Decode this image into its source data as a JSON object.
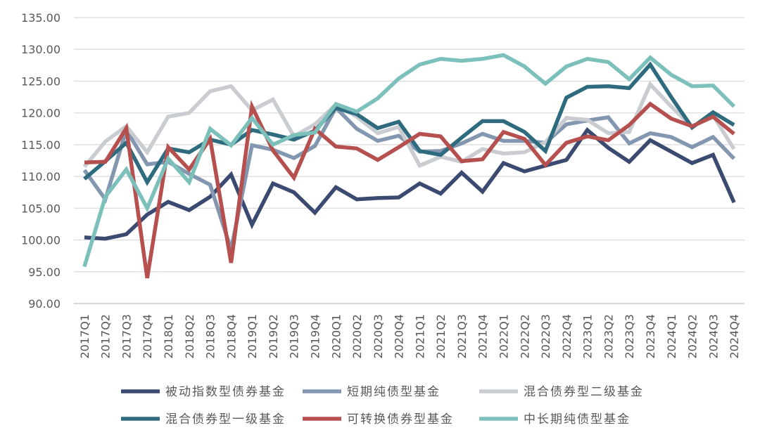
{
  "chart_data": {
    "type": "line",
    "title": "",
    "xlabel": "",
    "ylabel": "",
    "ylim": [
      90,
      135
    ],
    "ytick_step": 5,
    "y_tick_labels": [
      "90.00",
      "95.00",
      "100.00",
      "105.00",
      "110.00",
      "115.00",
      "120.00",
      "125.00",
      "130.00",
      "135.00"
    ],
    "grid": "horizontal",
    "legend_position": "bottom",
    "categories": [
      "2017Q1",
      "2017Q2",
      "2017Q3",
      "2017Q4",
      "2018Q1",
      "2018Q2",
      "2018Q3",
      "2018Q4",
      "2019Q1",
      "2019Q2",
      "2019Q3",
      "2019Q4",
      "2020Q1",
      "2020Q2",
      "2020Q3",
      "2020Q4",
      "2021Q1",
      "2021Q2",
      "2021Q3",
      "2021Q4",
      "2022Q1",
      "2022Q2",
      "2022Q3",
      "2022Q4",
      "2023Q1",
      "2023Q2",
      "2023Q3",
      "2023Q4",
      "2024Q1",
      "2024Q2",
      "2024Q3",
      "2024Q4"
    ],
    "series": [
      {
        "name": "被动指数型债券基金",
        "color": "#3b4a70",
        "values": [
          100.4,
          100.2,
          100.9,
          104.0,
          106.0,
          104.7,
          106.8,
          110.3,
          102.4,
          108.9,
          107.5,
          104.3,
          108.3,
          106.4,
          106.6,
          106.7,
          108.9,
          107.3,
          110.6,
          107.6,
          112.1,
          110.8,
          111.7,
          112.6,
          117.3,
          114.5,
          112.3,
          115.7,
          113.9,
          112.1,
          113.4,
          105.9
        ]
      },
      {
        "name": "短期纯债型基金",
        "color": "#8497b0",
        "values": [
          111.0,
          106.4,
          117.3,
          111.9,
          112.3,
          110.4,
          108.7,
          98.5,
          114.9,
          114.2,
          112.9,
          114.8,
          120.8,
          117.5,
          115.6,
          116.4,
          113.9,
          114.0,
          115.2,
          116.7,
          115.6,
          115.6,
          115.3,
          118.2,
          118.8,
          119.3,
          115.2,
          116.8,
          116.2,
          114.6,
          116.2,
          112.8
        ]
      },
      {
        "name": "混合债券型二级基金",
        "color": "#c9ccd1",
        "values": [
          111.5,
          115.5,
          117.9,
          113.8,
          119.4,
          120.0,
          123.4,
          124.2,
          120.4,
          122.1,
          116.3,
          118.2,
          121.3,
          119.4,
          116.8,
          117.8,
          111.7,
          113.1,
          112.3,
          114.3,
          113.6,
          113.8,
          115.4,
          119.2,
          118.9,
          116.8,
          117.0,
          124.5,
          121.0,
          117.8,
          119.6,
          114.3
        ]
      },
      {
        "name": "混合债券型一级基金",
        "color": "#2e6b7e",
        "values": [
          109.6,
          112.4,
          115.3,
          109.1,
          114.4,
          113.8,
          115.8,
          115.0,
          117.3,
          116.6,
          115.8,
          117.2,
          120.8,
          119.8,
          117.6,
          118.6,
          114.0,
          113.4,
          116.1,
          118.7,
          118.7,
          117.0,
          114.0,
          122.4,
          124.1,
          124.2,
          123.9,
          127.6,
          122.5,
          117.7,
          120.1,
          118.1
        ]
      },
      {
        "name": "可转换债券型基金",
        "color": "#b5504f",
        "values": [
          112.2,
          112.3,
          117.6,
          94.0,
          114.6,
          111.1,
          115.9,
          96.4,
          121.0,
          114.1,
          109.8,
          117.5,
          114.7,
          114.4,
          112.6,
          114.6,
          116.7,
          116.3,
          112.4,
          112.7,
          117.0,
          115.9,
          111.8,
          115.3,
          116.3,
          115.7,
          118.1,
          121.4,
          119.1,
          117.9,
          119.4,
          116.7
        ]
      },
      {
        "name": "中长期纯债型基金",
        "color": "#7cc0bc",
        "values": [
          95.8,
          106.8,
          111.1,
          105.0,
          112.8,
          109.1,
          117.5,
          114.9,
          119.2,
          115.0,
          116.5,
          116.9,
          121.4,
          120.2,
          122.3,
          125.4,
          127.6,
          128.5,
          128.2,
          128.5,
          129.1,
          127.3,
          124.6,
          127.3,
          128.5,
          128.0,
          125.3,
          128.7,
          126.0,
          124.2,
          124.3,
          121.0
        ]
      }
    ]
  }
}
